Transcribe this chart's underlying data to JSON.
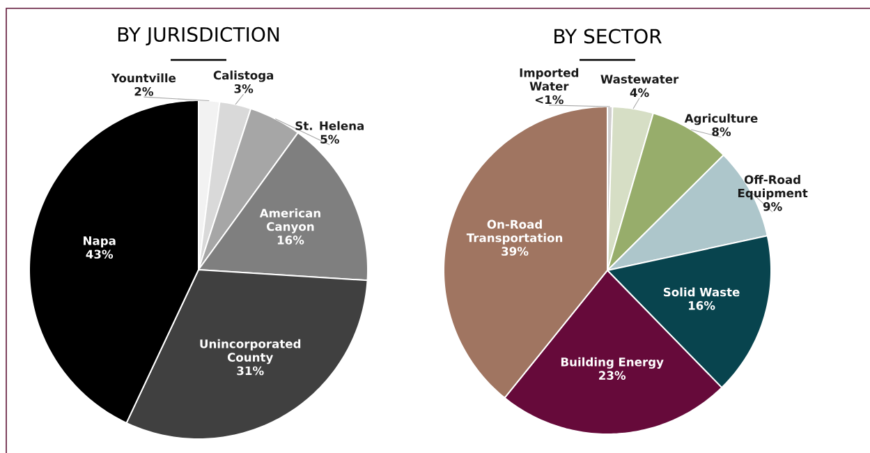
{
  "chart_data": [
    {
      "type": "pie",
      "title": "BY JURISDICTION",
      "categories": [
        "Yountville",
        "Calistoga",
        "St. Helena",
        "American Canyon",
        "Unincorporated County",
        "Napa"
      ],
      "values": [
        2,
        3,
        5,
        16,
        31,
        43
      ],
      "colors": [
        "#f2f2f2",
        "#d9d9d9",
        "#a6a6a6",
        "#7f7f7f",
        "#404040",
        "#000000"
      ],
      "value_labels": [
        "2%",
        "3%",
        "5%",
        "16%",
        "31%",
        "43%"
      ]
    },
    {
      "type": "pie",
      "title": "BY SECTOR",
      "categories": [
        "Imported Water",
        "Wastewater",
        "Agriculture",
        "Off-Road Equipment",
        "Solid Waste",
        "Building Energy",
        "On-Road Transportation"
      ],
      "values": [
        0.5,
        4,
        8,
        9,
        16,
        23,
        39
      ],
      "colors": [
        "#d0cece",
        "#d6dec5",
        "#97ad6b",
        "#adc6cb",
        "#08444e",
        "#660a3a",
        "#a07561"
      ],
      "value_labels": [
        "<1%",
        "4%",
        "8%",
        "9%",
        "16%",
        "23%",
        "39%"
      ]
    }
  ]
}
